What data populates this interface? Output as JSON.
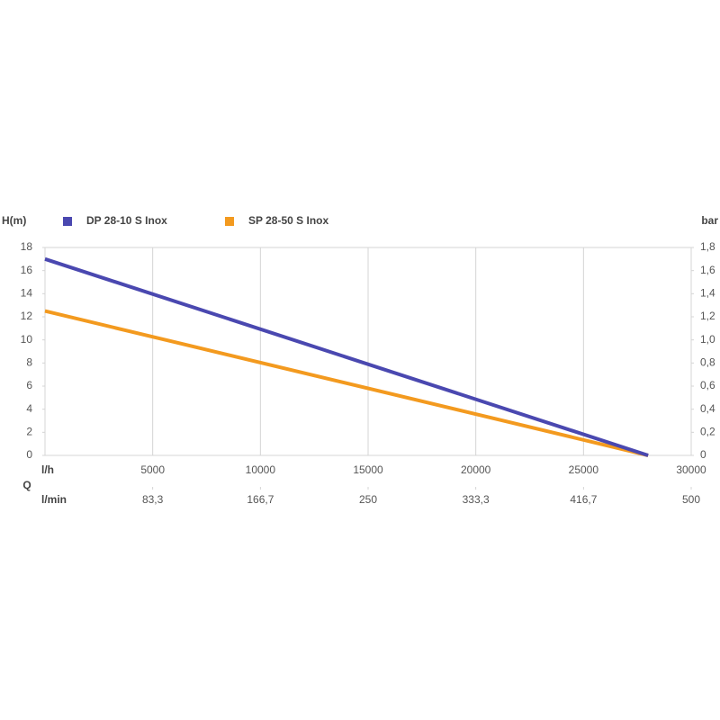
{
  "chart_data": {
    "type": "line",
    "y_label": "H(m)",
    "y2_label": "bar",
    "q_label": "Q",
    "x_label": "l/h",
    "x2_label": "l/min",
    "x": [
      0,
      28000
    ],
    "series": [
      {
        "name": "DP 28-10 S Inox",
        "color": "#4a48b0",
        "values": [
          17,
          0
        ]
      },
      {
        "name": "SP 28-50 S Inox",
        "color": "#f39a1f",
        "values": [
          12.5,
          0
        ]
      }
    ],
    "xlim": [
      0,
      30000
    ],
    "xticks": [
      5000,
      10000,
      15000,
      20000,
      25000,
      30000
    ],
    "x2lim": [
      0,
      500
    ],
    "x2ticks": [
      {
        "value": 83.3,
        "label": "83,3"
      },
      {
        "value": 166.7,
        "label": "166,7"
      },
      250,
      {
        "value": 333.3,
        "label": "333,3"
      },
      {
        "value": 416.7,
        "label": "416,7"
      },
      500
    ],
    "ylim": [
      0,
      18
    ],
    "yticks": [
      0,
      2,
      4,
      6,
      8,
      10,
      12,
      14,
      16,
      18
    ],
    "y2lim": [
      0,
      1.8
    ],
    "y2ticks": [
      0,
      {
        "value": 0.2,
        "label": "0,2"
      },
      {
        "value": 0.4,
        "label": "0,4"
      },
      {
        "value": 0.6,
        "label": "0,6"
      },
      {
        "value": 0.8,
        "label": "0,8"
      },
      {
        "value": 1.0,
        "label": "1,0"
      },
      {
        "value": 1.2,
        "label": "1,2"
      },
      {
        "value": 1.4,
        "label": "1,4"
      },
      {
        "value": 1.6,
        "label": "1,6"
      },
      {
        "value": 1.8,
        "label": "1,8"
      }
    ],
    "grid": "x"
  }
}
